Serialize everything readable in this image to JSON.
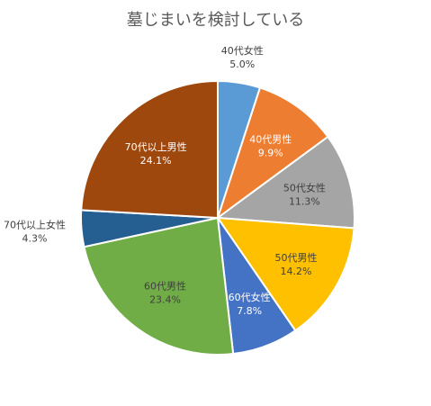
{
  "chart_data": {
    "type": "pie",
    "title": "墓じまいを検討している",
    "categories": [
      "40代女性",
      "40代男性",
      "50代女性",
      "50代男性",
      "60代女性",
      "60代男性",
      "70代以上女性",
      "70代以上男性"
    ],
    "values": [
      5.0,
      9.9,
      11.3,
      14.2,
      7.8,
      23.4,
      4.3,
      24.1
    ],
    "value_labels": [
      "5.0%",
      "9.9%",
      "11.3%",
      "14.2%",
      "7.8%",
      "23.4%",
      "4.3%",
      "24.1%"
    ],
    "colors": [
      "#5B9BD5",
      "#ED7D31",
      "#A5A5A5",
      "#FFC000",
      "#4472C4",
      "#70AD47",
      "#255E91",
      "#9E480E"
    ],
    "label_colors": [
      "#404040",
      "#ffffff",
      "#404040",
      "#404040",
      "#ffffff",
      "#404040",
      "#404040",
      "#ffffff"
    ],
    "label_outside": [
      true,
      false,
      false,
      false,
      false,
      false,
      true,
      false
    ],
    "start_angle_deg": 0,
    "direction": "clockwise"
  }
}
